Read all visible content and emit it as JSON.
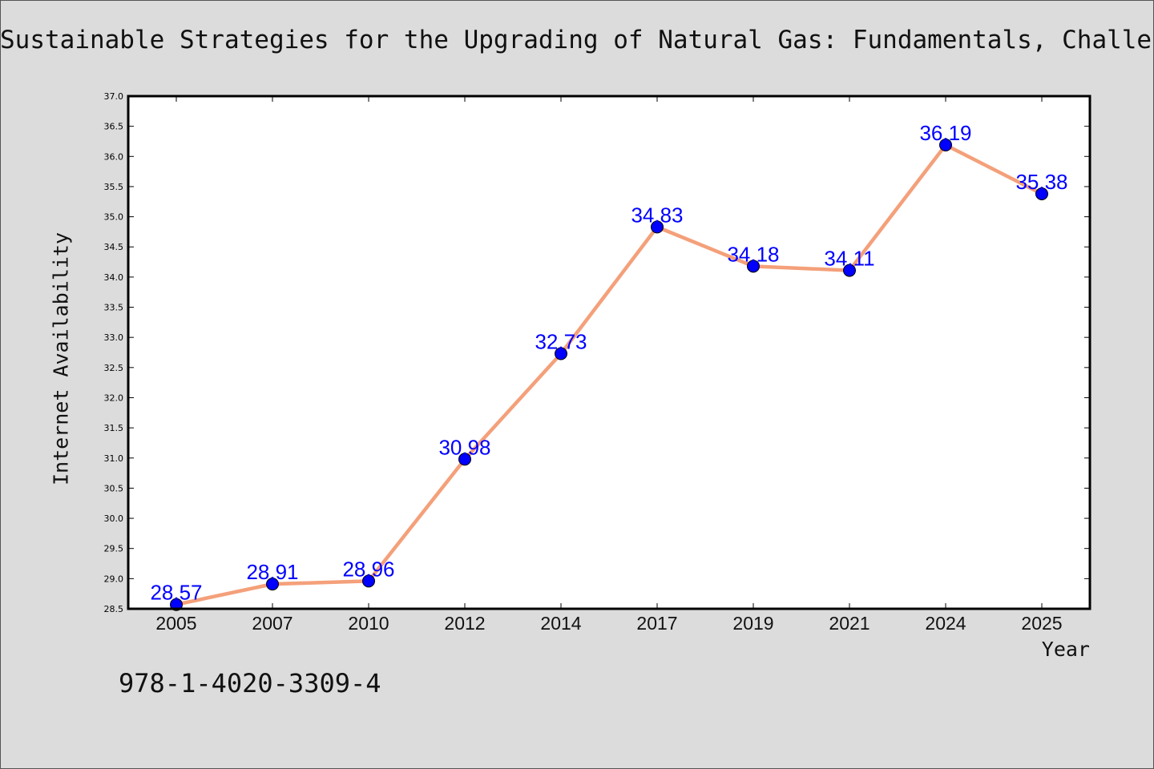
{
  "page": {
    "title": "Sustainable Strategies for the Upgrading of Natural Gas: Fundamentals, Challenges, and Opportunities",
    "footer_text": "978-1-4020-3309-4"
  },
  "colors": {
    "background": "#dcdcdc",
    "plot_background": "#ffffff",
    "line": "#f4a07a",
    "marker": "#0000ff",
    "data_label": "#0000ff"
  },
  "chart_data": {
    "type": "line",
    "xlabel": "Year",
    "ylabel": "Internet Availability",
    "categories": [
      "2005",
      "2007",
      "2010",
      "2012",
      "2014",
      "2017",
      "2019",
      "2021",
      "2024",
      "2025"
    ],
    "series": [
      {
        "values": [
          28.57,
          28.91,
          28.96,
          30.98,
          32.73,
          34.83,
          34.18,
          34.11,
          36.19,
          35.38
        ]
      }
    ],
    "data_labels": [
      "28.57",
      "28.91",
      "28.96",
      "30.98",
      "32.73",
      "34.83",
      "34.18",
      "34.11",
      "36.19",
      "35.38"
    ],
    "ylim": [
      28.5,
      37.0
    ],
    "yticks": [
      "28.5",
      "29.0",
      "29.5",
      "30.0",
      "30.5",
      "31.0",
      "31.5",
      "32.0",
      "32.5",
      "33.0",
      "33.5",
      "34.0",
      "34.5",
      "35.0",
      "35.5",
      "36.0",
      "36.5",
      "37.0"
    ],
    "grid": false,
    "legend": "none"
  }
}
